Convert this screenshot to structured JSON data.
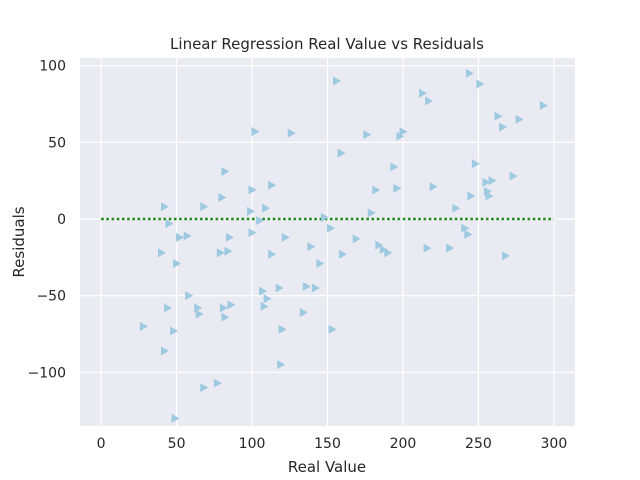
{
  "chart_data": {
    "type": "scatter",
    "title": "Linear Regression Real Value vs Residuals",
    "xlabel": "Real Value",
    "ylabel": "Residuals",
    "xlim": [
      -14,
      314
    ],
    "ylim": [
      -135,
      105
    ],
    "xticks": [
      0,
      50,
      100,
      150,
      200,
      250,
      300
    ],
    "yticks": [
      -100,
      -50,
      0,
      50,
      100
    ],
    "tick_labels": {
      "x": [
        "0",
        "50",
        "100",
        "150",
        "200",
        "250",
        "300"
      ],
      "y": [
        "−100",
        "−50",
        "0",
        "50",
        "100"
      ]
    },
    "grid": true,
    "legend": "none",
    "background_color": "#eaeaf2",
    "grid_color": "#ffffff",
    "marker": "triangle-right",
    "marker_color": "#9ecae1",
    "reference_line": {
      "y": 0,
      "x_range": [
        0,
        300
      ],
      "style": "dotted",
      "color": "#1a8a1a"
    },
    "series": [
      {
        "points": [
          [
            28,
            -70
          ],
          [
            40,
            -22
          ],
          [
            42,
            8
          ],
          [
            42,
            -86
          ],
          [
            44,
            -58
          ],
          [
            45,
            -3
          ],
          [
            48,
            -73
          ],
          [
            49,
            -130
          ],
          [
            50,
            -29
          ],
          [
            52,
            -12
          ],
          [
            57,
            -11
          ],
          [
            58,
            -50
          ],
          [
            64,
            -58
          ],
          [
            65,
            -62
          ],
          [
            68,
            8
          ],
          [
            68,
            -110
          ],
          [
            77,
            -107
          ],
          [
            79,
            -22
          ],
          [
            80,
            14
          ],
          [
            81,
            -58
          ],
          [
            82,
            31
          ],
          [
            82,
            -64
          ],
          [
            84,
            -21
          ],
          [
            85,
            -12
          ],
          [
            86,
            -56
          ],
          [
            99,
            5
          ],
          [
            100,
            19
          ],
          [
            100,
            -9
          ],
          [
            102,
            57
          ],
          [
            105,
            -1
          ],
          [
            107,
            -47
          ],
          [
            108,
            -57
          ],
          [
            109,
            7
          ],
          [
            110,
            -52
          ],
          [
            113,
            22
          ],
          [
            113,
            -23
          ],
          [
            118,
            -45
          ],
          [
            119,
            -95
          ],
          [
            120,
            -72
          ],
          [
            122,
            -12
          ],
          [
            126,
            56
          ],
          [
            134,
            -61
          ],
          [
            136,
            -44
          ],
          [
            139,
            -18
          ],
          [
            142,
            -45
          ],
          [
            145,
            -29
          ],
          [
            148,
            1
          ],
          [
            152,
            -6
          ],
          [
            153,
            -72
          ],
          [
            156,
            90
          ],
          [
            159,
            43
          ],
          [
            160,
            -23
          ],
          [
            169,
            -13
          ],
          [
            176,
            55
          ],
          [
            179,
            4
          ],
          [
            182,
            19
          ],
          [
            184,
            -17
          ],
          [
            187,
            -20
          ],
          [
            190,
            -22
          ],
          [
            194,
            34
          ],
          [
            196,
            20
          ],
          [
            198,
            54
          ],
          [
            200,
            57
          ],
          [
            213,
            82
          ],
          [
            216,
            -19
          ],
          [
            217,
            77
          ],
          [
            220,
            21
          ],
          [
            231,
            -19
          ],
          [
            235,
            7
          ],
          [
            241,
            -6
          ],
          [
            243,
            -10
          ],
          [
            244,
            95
          ],
          [
            245,
            15
          ],
          [
            248,
            36
          ],
          [
            251,
            88
          ],
          [
            255,
            24
          ],
          [
            256,
            18
          ],
          [
            257,
            15
          ],
          [
            259,
            25
          ],
          [
            263,
            67
          ],
          [
            266,
            60
          ],
          [
            268,
            -24
          ],
          [
            273,
            28
          ],
          [
            277,
            65
          ],
          [
            293,
            74
          ]
        ]
      }
    ]
  }
}
